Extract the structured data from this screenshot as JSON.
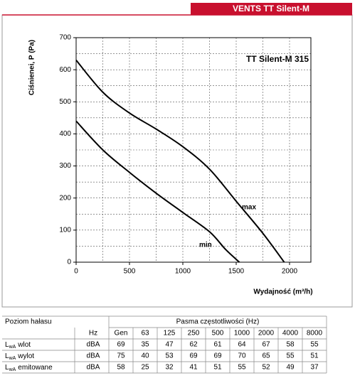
{
  "chart_data": {
    "type": "line",
    "header": "VENTS TT Silent-M",
    "title": "TT Silent-M 315",
    "x_label": "Wydajność (m³/h)",
    "y_label": "Ciśnienei, P (Pa)",
    "xlim": [
      0,
      2200
    ],
    "ylim": [
      0,
      700
    ],
    "xticks": [
      0,
      500,
      1000,
      1500,
      2000
    ],
    "yticks": [
      0,
      100,
      200,
      300,
      400,
      500,
      600,
      700
    ],
    "xgrid": [
      250,
      500,
      750,
      1000,
      1250,
      1500,
      1750,
      2000
    ],
    "ygrid": [
      50,
      100,
      150,
      200,
      250,
      300,
      350,
      400,
      450,
      500,
      550,
      600,
      650
    ],
    "grid": true,
    "series": [
      {
        "name": "max",
        "color": "#000000",
        "x": [
          0,
          250,
          500,
          750,
          1000,
          1250,
          1500,
          1750,
          1950
        ],
        "values": [
          630,
          530,
          465,
          415,
          360,
          290,
          190,
          90,
          0
        ]
      },
      {
        "name": "min",
        "color": "#000000",
        "x": [
          0,
          250,
          500,
          750,
          1000,
          1250,
          1400,
          1530
        ],
        "values": [
          440,
          350,
          280,
          215,
          155,
          95,
          40,
          0
        ]
      }
    ]
  },
  "table": {
    "title": "Poziom hałasu",
    "band_title": "Pasma częstotliwości (Hz)",
    "unit_header": "Hz",
    "columns": [
      "Gen",
      "63",
      "125",
      "250",
      "500",
      "1000",
      "2000",
      "4000",
      "8000"
    ],
    "rows": [
      {
        "label": {
          "main": "L",
          "sub": "wA",
          "rest": "wlot"
        },
        "unit": "dBA",
        "values": [
          69,
          35,
          47,
          62,
          61,
          64,
          67,
          58,
          55
        ]
      },
      {
        "label": {
          "main": "L",
          "sub": "wA",
          "rest": "wylot"
        },
        "unit": "dBA",
        "values": [
          75,
          40,
          53,
          69,
          69,
          70,
          65,
          55,
          51
        ]
      },
      {
        "label": {
          "main": "L",
          "sub": "wA",
          "rest": "emitowane"
        },
        "unit": "dBA",
        "values": [
          58,
          25,
          32,
          41,
          51,
          55,
          52,
          49,
          37
        ]
      }
    ]
  }
}
